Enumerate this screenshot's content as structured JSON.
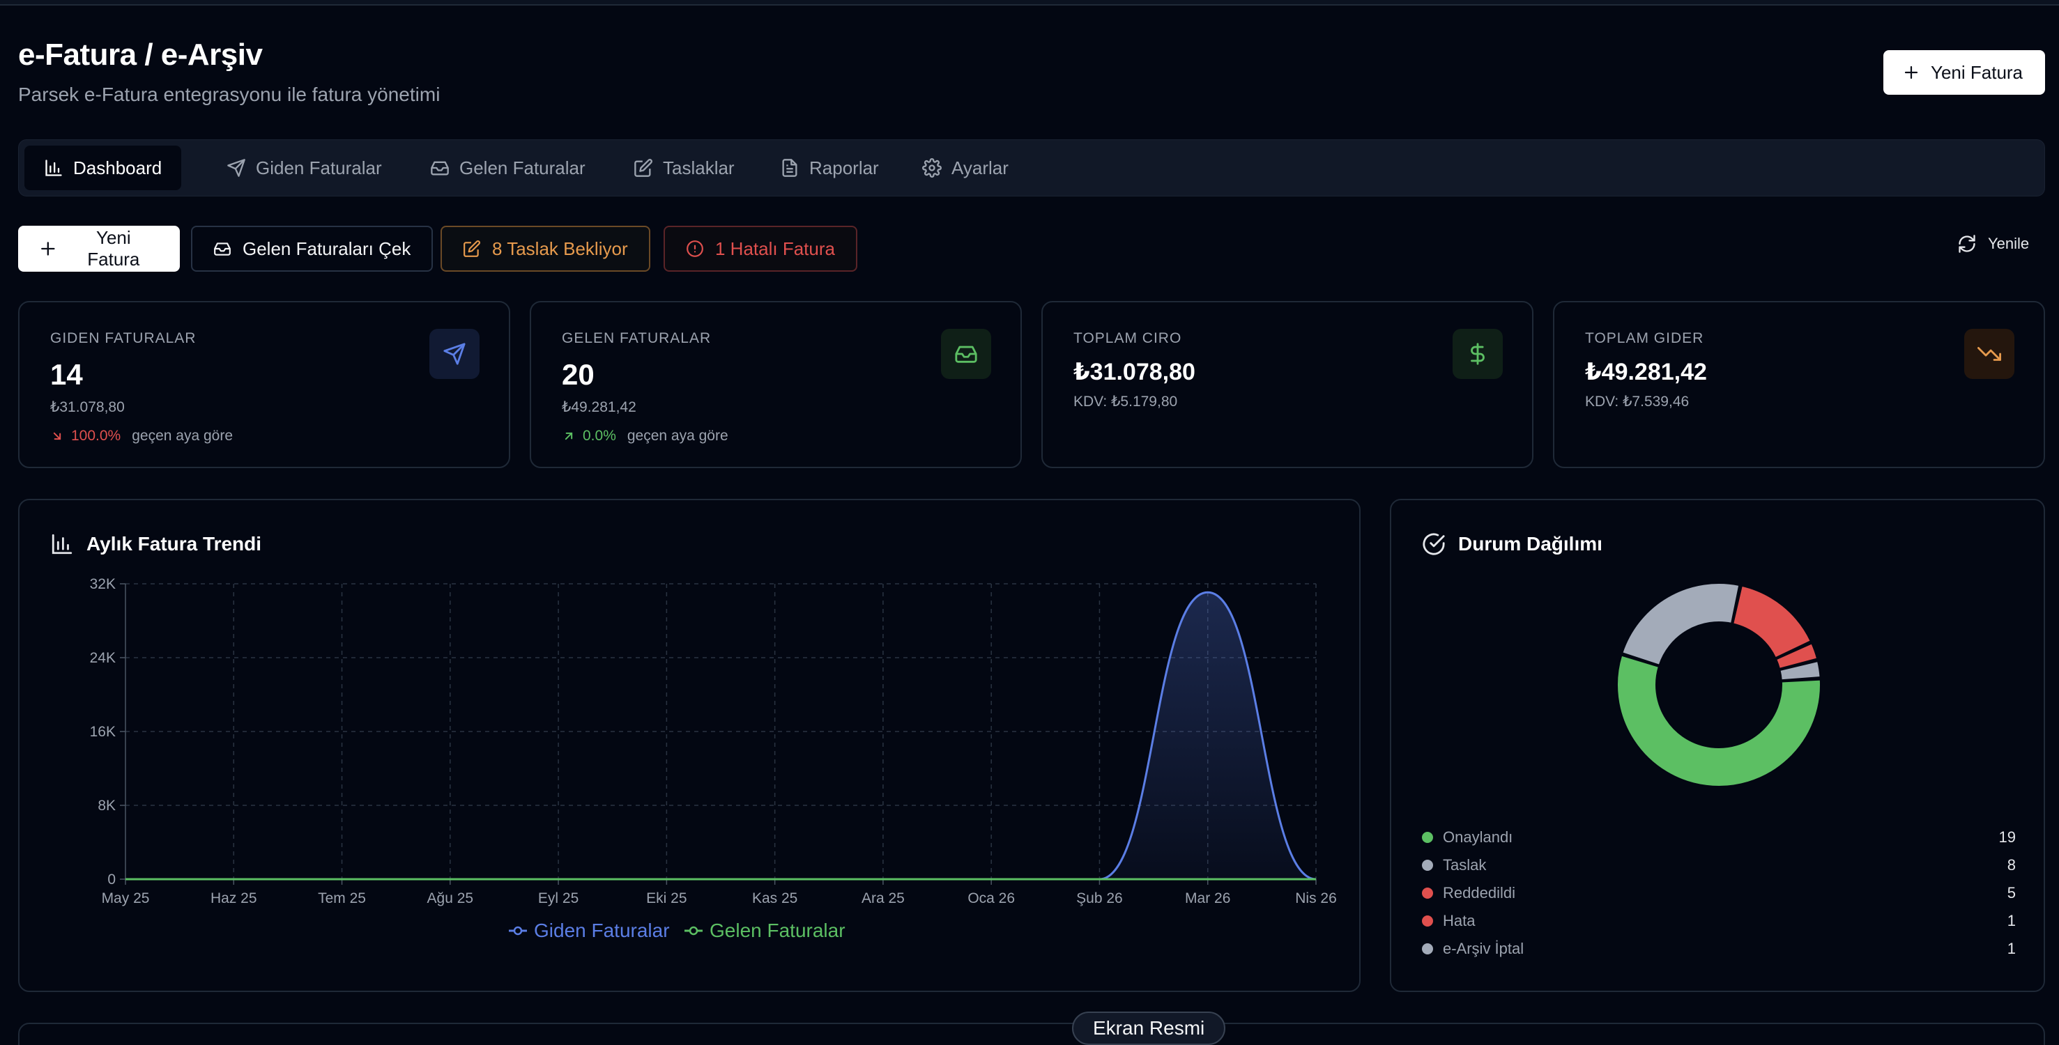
{
  "header": {
    "title": "e-Fatura / e-Arşiv",
    "subtitle": "Parsek e-Fatura entegrasyonu ile fatura yönetimi",
    "new_invoice_label": "Yeni Fatura"
  },
  "tabs": [
    {
      "label": "Dashboard",
      "icon": "bar-chart-icon",
      "active": true
    },
    {
      "label": "Giden Faturalar",
      "icon": "send-icon",
      "active": false
    },
    {
      "label": "Gelen Faturalar",
      "icon": "inbox-icon",
      "active": false
    },
    {
      "label": "Taslaklar",
      "icon": "edit-icon",
      "active": false
    },
    {
      "label": "Raporlar",
      "icon": "file-text-icon",
      "active": false
    },
    {
      "label": "Ayarlar",
      "icon": "gear-icon",
      "active": false
    }
  ],
  "actions": {
    "new_invoice": "Yeni Fatura",
    "fetch_incoming": "Gelen Faturaları Çek",
    "drafts_waiting": "8 Taslak Bekliyor",
    "error_invoice": "1 Hatalı Fatura",
    "refresh": "Yenile"
  },
  "stats": {
    "outgoing": {
      "label": "GIDEN FATURALAR",
      "value": "14",
      "amount": "₺31.078,80",
      "trend": "100.0%",
      "trend_text": "geçen aya göre",
      "trend_dir": "down"
    },
    "incoming": {
      "label": "GELEN FATURALAR",
      "value": "20",
      "amount": "₺49.281,42",
      "trend": "0.0%",
      "trend_text": "geçen aya göre",
      "trend_dir": "up"
    },
    "revenue": {
      "label": "TOPLAM CIRO",
      "value": "₺31.078,80",
      "vat": "KDV: ₺5.179,80"
    },
    "expense": {
      "label": "TOPLAM GIDER",
      "value": "₺49.281,42",
      "vat": "KDV: ₺7.539,46"
    }
  },
  "colors": {
    "green": "#5cbf63",
    "blue": "#5b7ee5",
    "red": "#e0504e",
    "orange": "#e69a4d",
    "gray": "#a3abb9"
  },
  "trend_panel": {
    "title": "Aylık Fatura Trendi"
  },
  "distribution_panel": {
    "title": "Durum Dağılımı",
    "items": [
      {
        "label": "Onaylandı",
        "count": 19,
        "color": "#5cbf63"
      },
      {
        "label": "Taslak",
        "count": 8,
        "color": "#a3abb9"
      },
      {
        "label": "Reddedildi",
        "count": 5,
        "color": "#e0504e"
      },
      {
        "label": "Hata",
        "count": 1,
        "color": "#e0504e"
      },
      {
        "label": "e-Arşiv İptal",
        "count": 1,
        "color": "#a3abb9"
      }
    ]
  },
  "screenshot_badge": "Ekran Resmi",
  "chart_data": [
    {
      "type": "area",
      "title": "Aylık Fatura Trendi",
      "categories": [
        "May 25",
        "Haz 25",
        "Tem 25",
        "Ağu 25",
        "Eyl 25",
        "Eki 25",
        "Kas 25",
        "Ara 25",
        "Oca 26",
        "Şub 26",
        "Mar 26",
        "Nis 26"
      ],
      "yticks": [
        "0",
        "8K",
        "16K",
        "24K",
        "32K"
      ],
      "ylim": [
        0,
        32000
      ],
      "grid": true,
      "legend": "bottom",
      "series": [
        {
          "name": "Giden Faturalar",
          "color": "#5b7ee5",
          "values": [
            0,
            0,
            0,
            0,
            0,
            0,
            0,
            0,
            0,
            0,
            31078.8,
            0
          ]
        },
        {
          "name": "Gelen Faturalar",
          "color": "#5cbf63",
          "values": [
            0,
            0,
            0,
            0,
            0,
            0,
            0,
            0,
            0,
            0,
            0,
            0
          ]
        }
      ]
    },
    {
      "type": "pie",
      "title": "Durum Dağılımı",
      "categories": [
        "Onaylandı",
        "Taslak",
        "Reddedildi",
        "Hata",
        "e-Arşiv İptal"
      ],
      "values": [
        19,
        8,
        5,
        1,
        1
      ]
    }
  ]
}
